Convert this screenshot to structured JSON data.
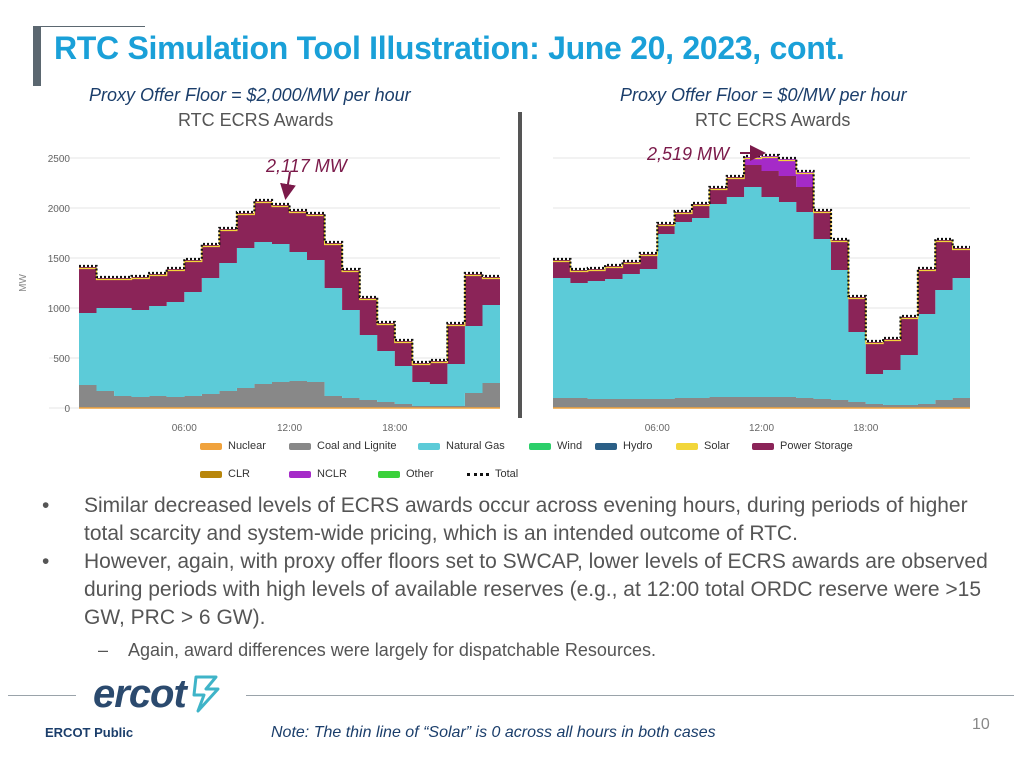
{
  "slide": {
    "title": "RTC Simulation Tool Illustration: June 20, 2023, cont.",
    "left_panel": {
      "subtitle": "Proxy Offer Floor = $2,000/MW per hour",
      "chart_title": "RTC ECRS Awards",
      "annotation": "2,117 MW"
    },
    "right_panel": {
      "subtitle": "Proxy Offer Floor = $0/MW per hour",
      "chart_title": "RTC ECRS Awards",
      "annotation": "2,519 MW"
    },
    "bullets": [
      "Similar decreased levels of ECRS awards occur across evening hours, during periods of higher total scarcity and system-wide pricing, which is an intended outcome of RTC.",
      "However, again, with proxy offer floors set to SWCAP, lower levels of ECRS awards are observed during periods with high levels of available reserves (e.g., at 12:00 total ORDC reserve were >15 GW, PRC > 6 GW)."
    ],
    "sub_bullet": "Again, award differences were largely for dispatchable Resources.",
    "bullet_marker": "•",
    "sub_bullet_marker": "–",
    "footer_left": "ERCOT Public",
    "footer_note": "Note: The thin line of “Solar” is 0 across all hours in both cases",
    "page_number": "10",
    "logo_text": "ercot"
  },
  "chart_data": [
    {
      "type": "area",
      "title": "RTC ECRS Awards",
      "ylabel": "MW",
      "ylim": [
        0,
        2500
      ],
      "yticks": [
        "0",
        "500",
        "1000",
        "1500",
        "2000",
        "2500"
      ],
      "xticks": [
        "06:00",
        "12:00",
        "18:00"
      ],
      "x_hours": [
        0,
        1,
        2,
        3,
        4,
        5,
        6,
        7,
        8,
        9,
        10,
        11,
        12,
        13,
        14,
        15,
        16,
        17,
        18,
        19,
        20,
        21,
        22,
        23,
        24
      ],
      "series": [
        {
          "name": "Coal and Lignite",
          "color": "#888888",
          "values": [
            230,
            170,
            120,
            110,
            120,
            110,
            120,
            140,
            170,
            200,
            240,
            260,
            270,
            260,
            120,
            100,
            80,
            60,
            40,
            20,
            20,
            20,
            150,
            250,
            260
          ]
        },
        {
          "name": "Natural Gas",
          "color": "#5ccbd8",
          "values": [
            720,
            830,
            880,
            870,
            900,
            950,
            1040,
            1160,
            1280,
            1400,
            1420,
            1380,
            1290,
            1220,
            1080,
            880,
            650,
            510,
            380,
            240,
            220,
            420,
            670,
            780,
            780
          ]
        },
        {
          "name": "Power Storage",
          "color": "#8b2458",
          "values": [
            460,
            300,
            300,
            330,
            320,
            330,
            320,
            330,
            340,
            350,
            410,
            390,
            410,
            460,
            450,
            400,
            370,
            280,
            250,
            190,
            230,
            400,
            520,
            280,
            300
          ]
        }
      ]
    },
    {
      "type": "area",
      "title": "RTC ECRS Awards",
      "ylabel": "MW",
      "ylim": [
        0,
        2500
      ],
      "yticks": [
        "0",
        "500",
        "1000",
        "1500",
        "2000",
        "2500"
      ],
      "xticks": [
        "06:00",
        "12:00",
        "18:00"
      ],
      "x_hours": [
        0,
        1,
        2,
        3,
        4,
        5,
        6,
        7,
        8,
        9,
        10,
        11,
        12,
        13,
        14,
        15,
        16,
        17,
        18,
        19,
        20,
        21,
        22,
        23,
        24
      ],
      "series": [
        {
          "name": "Coal and Lignite",
          "color": "#888888",
          "values": [
            100,
            100,
            90,
            90,
            90,
            90,
            90,
            100,
            100,
            110,
            110,
            110,
            110,
            110,
            100,
            90,
            80,
            60,
            40,
            30,
            30,
            40,
            80,
            100,
            100
          ]
        },
        {
          "name": "Natural Gas",
          "color": "#5ccbd8",
          "values": [
            1200,
            1150,
            1180,
            1200,
            1250,
            1300,
            1650,
            1760,
            1800,
            1930,
            2000,
            2100,
            2000,
            1950,
            1860,
            1600,
            1300,
            700,
            300,
            350,
            500,
            900,
            1100,
            1200,
            1250
          ]
        },
        {
          "name": "Power Storage",
          "color": "#8b2458",
          "values": [
            180,
            130,
            120,
            130,
            120,
            150,
            100,
            100,
            140,
            160,
            200,
            220,
            260,
            260,
            250,
            280,
            300,
            350,
            320,
            310,
            380,
            450,
            500,
            300,
            300
          ]
        },
        {
          "name": "NCLR",
          "color": "#a52ac8",
          "values": [
            0,
            0,
            0,
            0,
            0,
            0,
            0,
            0,
            0,
            0,
            0,
            80,
            150,
            170,
            150,
            0,
            0,
            0,
            0,
            0,
            0,
            0,
            0,
            0,
            0
          ]
        }
      ]
    }
  ],
  "legend": [
    {
      "label": "Nuclear",
      "color": "#f0a23c"
    },
    {
      "label": "Coal and Lignite",
      "color": "#888888"
    },
    {
      "label": "Natural Gas",
      "color": "#5ccbd8"
    },
    {
      "label": "Wind",
      "color": "#2ccf6a"
    },
    {
      "label": "Hydro",
      "color": "#2b5f86"
    },
    {
      "label": "Solar",
      "color": "#f2d63a"
    },
    {
      "label": "Power Storage",
      "color": "#8b2458"
    },
    {
      "label": "CLR",
      "color": "#b8860b"
    },
    {
      "label": "NCLR",
      "color": "#a52ac8"
    },
    {
      "label": "Other",
      "color": "#3bd13b"
    },
    {
      "label": "Total",
      "color": "#111111"
    }
  ]
}
